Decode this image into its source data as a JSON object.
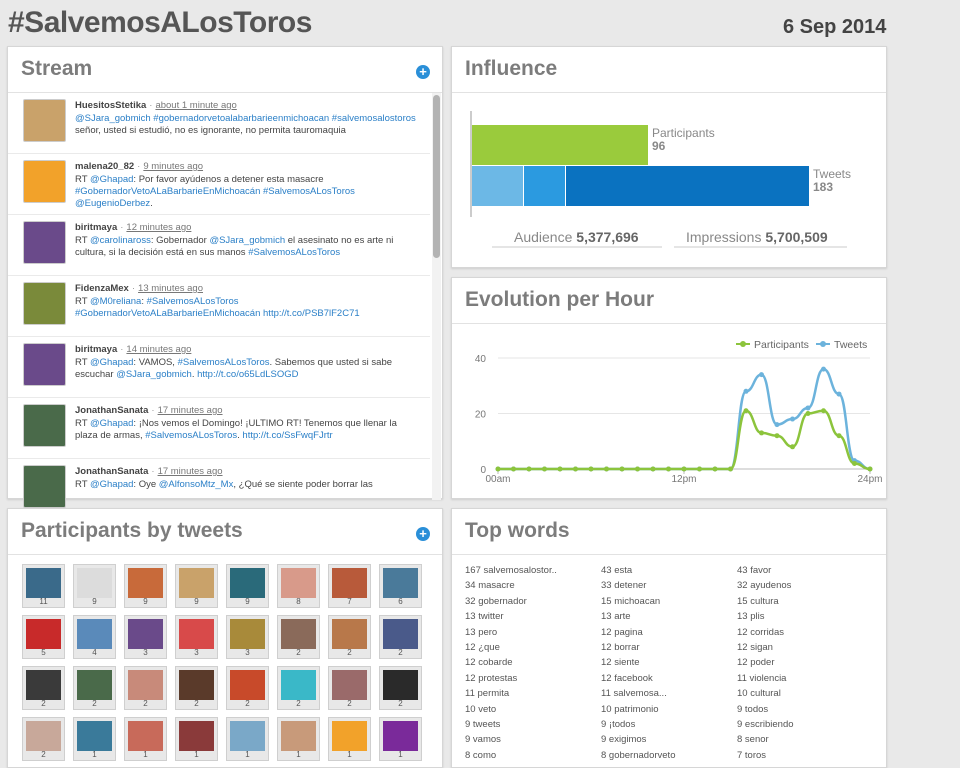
{
  "header": {
    "title": "#SalvemosALosToros",
    "date": "6 Sep 2014"
  },
  "stream": {
    "title": "Stream",
    "tweets": [
      {
        "user": "HuesitosStetika",
        "time": "about 1 minute ago",
        "parts": [
          [
            "@SJara_gobmich #gobernadorvetoalabarbarieenmichoacan #salvemosalostoros",
            true
          ],
          [
            " señor, usted si estudió, no es ignorante, no permita tauromaquia",
            false
          ]
        ],
        "avatar_color": "#c9a26a"
      },
      {
        "user": "malena20_82",
        "time": "9 minutes ago",
        "parts": [
          [
            "RT ",
            false
          ],
          [
            "@Ghapad",
            true
          ],
          [
            ": Por favor ayúdenos a detener esta masacre ",
            false
          ],
          [
            "#GobernadorVetoALaBarbarieEnMichoacán #SalvemosALosToros @EugenioDerbez",
            true
          ],
          [
            ".",
            false
          ]
        ],
        "avatar_color": "#f2a22a"
      },
      {
        "user": "biritmaya",
        "time": "12 minutes ago",
        "parts": [
          [
            "RT ",
            false
          ],
          [
            "@carolinaross",
            true
          ],
          [
            ": Gobernador ",
            false
          ],
          [
            "@SJara_gobmich",
            true
          ],
          [
            " el asesinato no es arte ni cultura, si la decisión está en sus manos ",
            false
          ],
          [
            "#SalvemosALosToros",
            true
          ]
        ],
        "avatar_color": "#6a4a8a"
      },
      {
        "user": "FidenzaMex",
        "time": "13 minutes ago",
        "parts": [
          [
            "RT ",
            false
          ],
          [
            "@M0reliana",
            true
          ],
          [
            ": ",
            false
          ],
          [
            "#SalvemosALosToros #GobernadorVetoALaBarbarieEnMichoacán http://t.co/PSB7lF2C71",
            true
          ]
        ],
        "avatar_color": "#7a8a3a"
      },
      {
        "user": "biritmaya",
        "time": "14 minutes ago",
        "parts": [
          [
            "RT ",
            false
          ],
          [
            "@Ghapad",
            true
          ],
          [
            ": VAMOS, ",
            false
          ],
          [
            "#SalvemosALosToros",
            true
          ],
          [
            ". Sabemos que usted si sabe escuchar ",
            false
          ],
          [
            "@SJara_gobmich",
            true
          ],
          [
            ". ",
            false
          ],
          [
            "http://t.co/o65LdLSOGD",
            true
          ]
        ],
        "avatar_color": "#6a4a8a"
      },
      {
        "user": "JonathanSanata",
        "time": "17 minutes ago",
        "parts": [
          [
            "RT ",
            false
          ],
          [
            "@Ghapad",
            true
          ],
          [
            ": ¡Nos vemos el Domingo! ¡ULTIMO RT! Tenemos que llenar la plaza de armas, ",
            false
          ],
          [
            "#SalvemosALosToros",
            true
          ],
          [
            ". ",
            false
          ],
          [
            "http://t.co/SsFwqFJrtr",
            true
          ]
        ],
        "avatar_color": "#4a6a4a"
      },
      {
        "user": "JonathanSanata",
        "time": "17 minutes ago",
        "parts": [
          [
            "RT ",
            false
          ],
          [
            "@Ghapad",
            true
          ],
          [
            ": Oye ",
            false
          ],
          [
            "@AlfonsoMtz_Mx",
            true
          ],
          [
            ", ¿Qué se siente poder borrar las",
            false
          ]
        ],
        "avatar_color": "#4a6a4a"
      }
    ]
  },
  "influence": {
    "title": "Influence",
    "participants_label": "Participants",
    "participants_value": "96",
    "tweets_label": "Tweets",
    "tweets_value": "183",
    "audience_label": "Audience",
    "audience_value": "5,377,696",
    "impressions_label": "Impressions",
    "impressions_value": "5,700,509",
    "colors": {
      "participants": "#9acb3c",
      "tweets_a": "#6cb8e6",
      "tweets_b": "#2b9ae0",
      "tweets_c": "#0a72c0"
    }
  },
  "evolution": {
    "title": "Evolution per Hour",
    "legend_participants": "Participants",
    "legend_tweets": "Tweets",
    "x_labels": [
      "00am",
      "12pm",
      "24pm"
    ],
    "y_labels": [
      "0",
      "20",
      "40"
    ]
  },
  "chart_data": {
    "type": "line",
    "title": "Evolution per Hour",
    "xlabel": "",
    "ylabel": "",
    "x": [
      0,
      1,
      2,
      3,
      4,
      5,
      6,
      7,
      8,
      9,
      10,
      11,
      12,
      13,
      14,
      15,
      16,
      17,
      18,
      19,
      20,
      21,
      22,
      23,
      24
    ],
    "ylim": [
      0,
      40
    ],
    "grid": true,
    "legend": "top-right",
    "series": [
      {
        "name": "Participants",
        "color": "#8cc43c",
        "values": [
          0,
          0,
          0,
          0,
          0,
          0,
          0,
          0,
          0,
          0,
          0,
          0,
          0,
          0,
          0,
          0,
          21,
          13,
          12,
          8,
          20,
          21,
          12,
          2,
          0
        ]
      },
      {
        "name": "Tweets",
        "color": "#6cb3dc",
        "values": [
          0,
          0,
          0,
          0,
          0,
          0,
          0,
          0,
          0,
          0,
          0,
          0,
          0,
          0,
          0,
          0,
          28,
          34,
          16,
          18,
          22,
          36,
          27,
          3,
          0
        ]
      }
    ]
  },
  "participants": {
    "title": "Participants by tweets",
    "thumbs": [
      {
        "count": "11",
        "color": "#3a6a8a"
      },
      {
        "count": "9",
        "color": "#dcdcdc"
      },
      {
        "count": "9",
        "color": "#c86a3a"
      },
      {
        "count": "9",
        "color": "#c9a26a"
      },
      {
        "count": "9",
        "color": "#2a6a7a"
      },
      {
        "count": "8",
        "color": "#d89a8a"
      },
      {
        "count": "7",
        "color": "#b85a3a"
      },
      {
        "count": "6",
        "color": "#4a7a9a"
      },
      {
        "count": "5",
        "color": "#c82a2a"
      },
      {
        "count": "4",
        "color": "#5a8aba"
      },
      {
        "count": "3",
        "color": "#6a4a8a"
      },
      {
        "count": "3",
        "color": "#d84a4a"
      },
      {
        "count": "3",
        "color": "#a88a3a"
      },
      {
        "count": "2",
        "color": "#8a6a5a"
      },
      {
        "count": "2",
        "color": "#b8784a"
      },
      {
        "count": "2",
        "color": "#4a5a8a"
      },
      {
        "count": "2",
        "color": "#3a3a3a"
      },
      {
        "count": "2",
        "color": "#4a6a4a"
      },
      {
        "count": "2",
        "color": "#c88a7a"
      },
      {
        "count": "2",
        "color": "#5a3a2a"
      },
      {
        "count": "2",
        "color": "#c84a2a"
      },
      {
        "count": "2",
        "color": "#3ab8c8"
      },
      {
        "count": "2",
        "color": "#9a6a6a"
      },
      {
        "count": "2",
        "color": "#2a2a2a"
      },
      {
        "count": "2",
        "color": "#c8a89a"
      },
      {
        "count": "1",
        "color": "#3a7a9a"
      },
      {
        "count": "1",
        "color": "#c86a5a"
      },
      {
        "count": "1",
        "color": "#8a3a3a"
      },
      {
        "count": "1",
        "color": "#7aa8c8"
      },
      {
        "count": "1",
        "color": "#c89a7a"
      },
      {
        "count": "1",
        "color": "#f2a22a"
      },
      {
        "count": "1",
        "color": "#7a2a9a"
      }
    ]
  },
  "topwords": {
    "title": "Top words",
    "columns": [
      [
        "167 salvemosalostor..",
        "34 masacre",
        "32 gobernador",
        "13 twitter",
        "13 pero",
        "12 ¿que",
        "12 cobarde",
        "12 protestas",
        "11 permita",
        "10 veto",
        "9 tweets",
        "9 vamos",
        "8 como"
      ],
      [
        "43 esta",
        "33 detener",
        "15 michoacan",
        "13 arte",
        "12 pagina",
        "12 borrar",
        "12 siente",
        "12 facebook",
        "11 salvemosa...",
        "10 patrimonio",
        "9 ¡todos",
        "9 exigimos",
        "8 gobernadorveto"
      ],
      [
        "43 favor",
        "32 ayudenos",
        "15 cultura",
        "13 plis",
        "12 corridas",
        "12 sigan",
        "12 poder",
        "11 violencia",
        "10 cultural",
        "9 todos",
        "9 escribiendo",
        "8 senor",
        "7 toros"
      ]
    ]
  }
}
